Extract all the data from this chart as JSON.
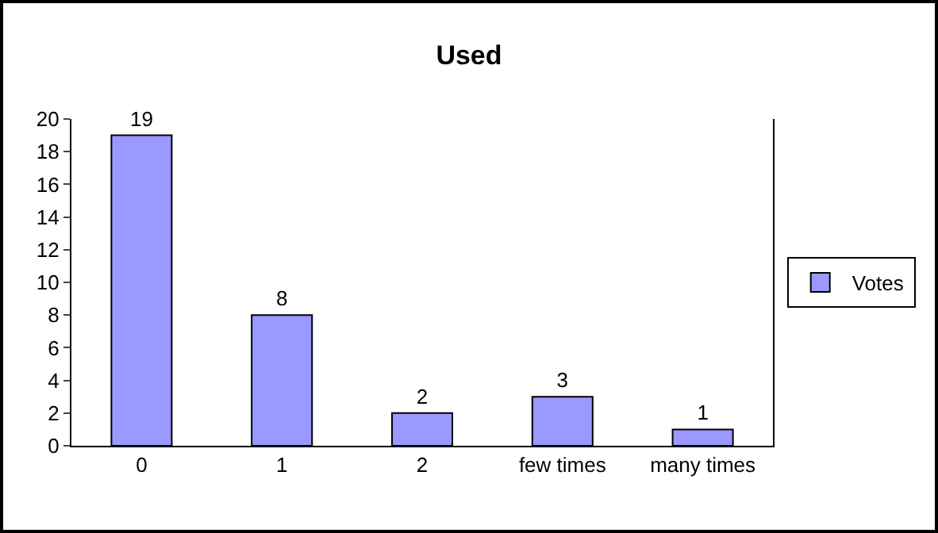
{
  "chart_data": {
    "type": "bar",
    "title": "Used",
    "categories": [
      "0",
      "1",
      "2",
      "few times",
      "many times"
    ],
    "series": [
      {
        "name": "Votes",
        "color": "#9999ff",
        "values": [
          19,
          8,
          2,
          3,
          1
        ]
      }
    ],
    "ylim": [
      0,
      20
    ],
    "yticks": [
      0,
      2,
      4,
      6,
      8,
      10,
      12,
      14,
      16,
      18,
      20
    ],
    "data_labels": true,
    "grid": false,
    "legend": "right"
  }
}
